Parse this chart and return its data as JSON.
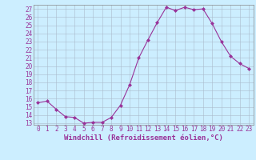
{
  "x": [
    0,
    1,
    2,
    3,
    4,
    5,
    6,
    7,
    8,
    9,
    10,
    11,
    12,
    13,
    14,
    15,
    16,
    17,
    18,
    19,
    20,
    21,
    22,
    23
  ],
  "y": [
    15.5,
    15.7,
    14.7,
    13.8,
    13.7,
    13.0,
    13.1,
    13.1,
    13.7,
    15.2,
    17.7,
    21.0,
    23.2,
    25.3,
    27.2,
    26.8,
    27.2,
    26.9,
    27.0,
    25.2,
    23.0,
    21.2,
    20.3,
    19.7
  ],
  "line_color": "#993399",
  "marker": "D",
  "marker_size": 2,
  "bg_color": "#cceeff",
  "grid_color": "#aabbcc",
  "xlabel": "Windchill (Refroidissement éolien,°C)",
  "ylabel": "",
  "ylim": [
    13,
    27
  ],
  "xlim": [
    -0.5,
    23.5
  ],
  "yticks": [
    13,
    14,
    15,
    16,
    17,
    18,
    19,
    20,
    21,
    22,
    23,
    24,
    25,
    26,
    27
  ],
  "xticks": [
    0,
    1,
    2,
    3,
    4,
    5,
    6,
    7,
    8,
    9,
    10,
    11,
    12,
    13,
    14,
    15,
    16,
    17,
    18,
    19,
    20,
    21,
    22,
    23
  ],
  "xlabel_fontsize": 6.5,
  "tick_fontsize": 5.5
}
